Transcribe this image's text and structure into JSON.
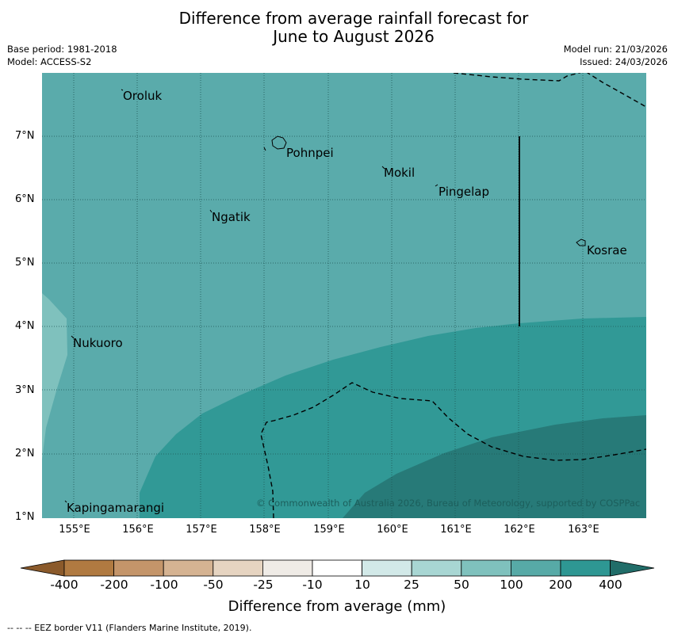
{
  "title_line1": "Difference from average rainfall forecast for",
  "title_line2": "June to August 2026",
  "base_period": "Base period: 1981-2018",
  "model": "Model: ACCESS-S2",
  "model_run": "Model run: 21/03/2026",
  "issued": "Issued: 24/03/2026",
  "lat_labels": [
    "7°N",
    "6°N",
    "5°N",
    "4°N",
    "3°N",
    "2°N",
    "1°N"
  ],
  "lon_labels": [
    "155°E",
    "156°E",
    "157°E",
    "158°E",
    "159°E",
    "160°E",
    "161°E",
    "162°E",
    "163°E"
  ],
  "places": {
    "oroluk": "Oroluk",
    "pohnpei": "Pohnpei",
    "mokil": "Mokil",
    "pingelap": "Pingelap",
    "ngatik": "Ngatik",
    "kosrae": "Kosrae",
    "nukuoro": "Nukuoro",
    "kapingamarangi": "Kapingamarangi"
  },
  "copyright": "© Commonwealth of Australia 2026, Bureau of Meteorology, supported by COSPPac",
  "colorbar": {
    "ticks": [
      "-400",
      "-200",
      "-100",
      "-50",
      "-25",
      "-10",
      "10",
      "25",
      "50",
      "100",
      "200",
      "400"
    ],
    "colors": [
      "#8b5a2b",
      "#b07a41",
      "#c4956a",
      "#d5b392",
      "#e6d4c1",
      "#efebe6",
      "#ffffff",
      "#d2e9e8",
      "#a8d6d3",
      "#7fc1bd",
      "#57aaa7",
      "#2e9793",
      "#216d69"
    ],
    "title": "Difference from average (mm)"
  },
  "footer": "--  --  -- EEZ border V11 (Flanders Marine Institute, 2019).",
  "colors": {
    "band_50_100": "#7fc1bd",
    "band_100_200": "#5aabab",
    "band_200_400": "#319996",
    "band_above_400": "#277a78"
  }
}
